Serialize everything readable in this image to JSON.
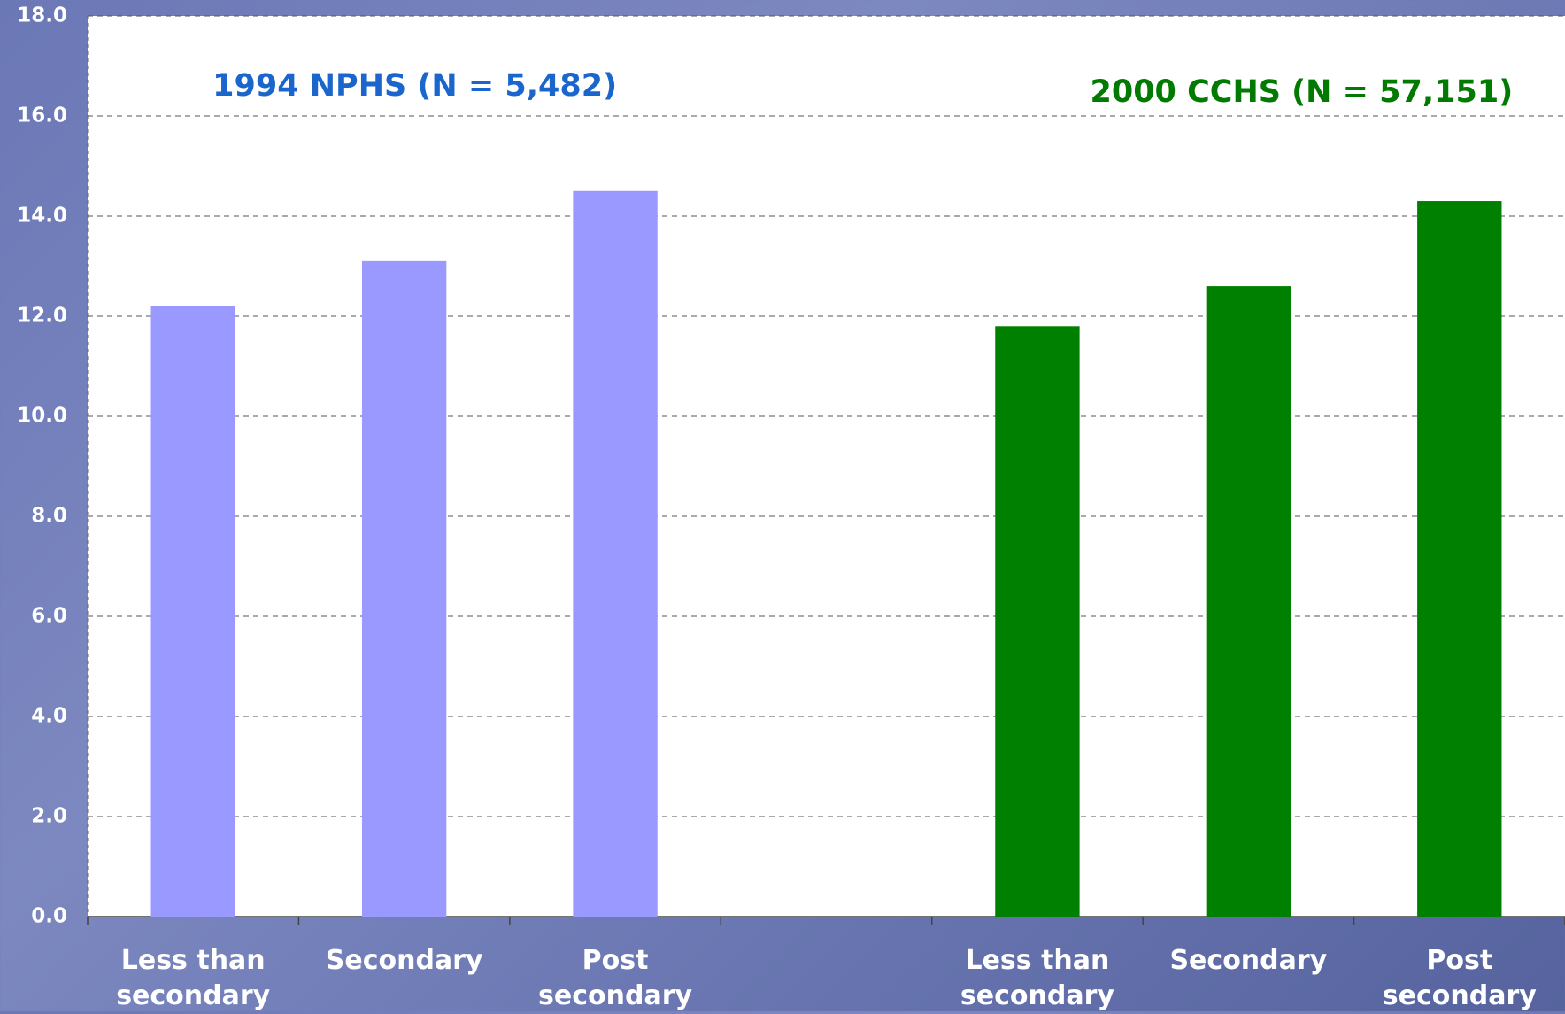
{
  "chart_data": {
    "type": "bar",
    "categories": [
      "Less than secondary",
      "Secondary",
      "Post secondary",
      null,
      "Less than secondary",
      "Secondary",
      "Post secondary"
    ],
    "series": [
      {
        "name": "1994 NPHS (N = 5,482)",
        "color": "#9999ff",
        "label_color": "#1a66cc",
        "values": [
          12.2,
          13.1,
          14.5,
          null,
          null,
          null,
          null
        ]
      },
      {
        "name": "2000 CCHS (N = 57,151)",
        "color": "#008000",
        "label_color": "#007a00",
        "values": [
          null,
          null,
          null,
          null,
          11.8,
          12.6,
          14.3
        ]
      }
    ],
    "ylim": [
      0,
      18
    ],
    "yticks": [
      {
        "value": 0,
        "label": "0.0"
      },
      {
        "value": 2,
        "label": "2.0"
      },
      {
        "value": 4,
        "label": "4.0"
      },
      {
        "value": 6,
        "label": "6.0"
      },
      {
        "value": 8,
        "label": "8.0"
      },
      {
        "value": 10,
        "label": "10.0"
      },
      {
        "value": 12,
        "label": "12.0"
      },
      {
        "value": 14,
        "label": "14.0"
      },
      {
        "value": 16,
        "label": "16.0"
      },
      {
        "value": 18,
        "label": "18.0"
      }
    ],
    "grid": true
  }
}
